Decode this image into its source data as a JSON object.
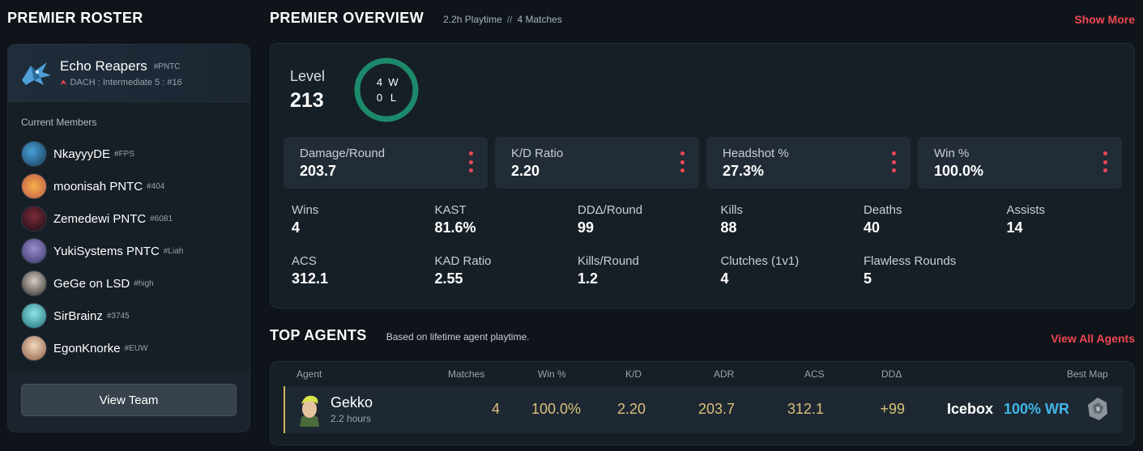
{
  "roster": {
    "title": "PREMIER ROSTER",
    "team_name": "Echo Reapers",
    "team_tag": "#PNTC",
    "team_division": "DACH : Intermediate 5 : #16",
    "members_label": "Current Members",
    "members": [
      {
        "name": "NkayyyDE",
        "tag": "#FPS",
        "color": "#2a6f9a"
      },
      {
        "name": "moonisah PNTC",
        "tag": "#404",
        "color": "#e07a3a"
      },
      {
        "name": "Zemedewi PNTC",
        "tag": "#6081",
        "color": "#5a2330"
      },
      {
        "name": "YukiSystems PNTC",
        "tag": "#Liah",
        "color": "#6b64a8"
      },
      {
        "name": "GeGe on LSD",
        "tag": "#high",
        "color": "#3b3a38"
      },
      {
        "name": "SirBrainz",
        "tag": "#3745",
        "color": "#3fb2b8"
      },
      {
        "name": "EgonKnorke",
        "tag": "#EUW",
        "color": "#c9a07c"
      }
    ],
    "view_team_label": "View Team"
  },
  "overview": {
    "title": "PREMIER OVERVIEW",
    "playtime": "2.2h Playtime",
    "separator": "//",
    "matches": "4 Matches",
    "show_more": "Show More",
    "level_label": "Level",
    "level_value": "213",
    "wins": "4",
    "losses": "0",
    "w_label": "W",
    "l_label": "L",
    "ring_color": "#1c8a6a",
    "top_stats": [
      {
        "label": "Damage/Round",
        "value": "203.7"
      },
      {
        "label": "K/D Ratio",
        "value": "2.20"
      },
      {
        "label": "Headshot %",
        "value": "27.3%"
      },
      {
        "label": "Win %",
        "value": "100.0%"
      }
    ],
    "stats": [
      {
        "label": "Wins",
        "value": "4"
      },
      {
        "label": "KAST",
        "value": "81.6%"
      },
      {
        "label": "DDΔ/Round",
        "value": "99"
      },
      {
        "label": "Kills",
        "value": "88"
      },
      {
        "label": "Deaths",
        "value": "40"
      },
      {
        "label": "Assists",
        "value": "14"
      },
      {
        "label": "ACS",
        "value": "312.1"
      },
      {
        "label": "KAD Ratio",
        "value": "2.55"
      },
      {
        "label": "Kills/Round",
        "value": "1.2"
      },
      {
        "label": "Clutches (1v1)",
        "value": "4"
      },
      {
        "label": "Flawless Rounds",
        "value": "5"
      }
    ]
  },
  "agents": {
    "title": "TOP AGENTS",
    "subtitle": "Based on lifetime agent playtime.",
    "view_all": "View All Agents",
    "columns": {
      "agent": "Agent",
      "matches": "Matches",
      "win": "Win %",
      "kd": "K/D",
      "adr": "ADR",
      "acs": "ACS",
      "dd": "DDΔ",
      "best_map": "Best Map"
    },
    "rows": [
      {
        "name": "Gekko",
        "hours": "2.2 hours",
        "matches": "4",
        "win": "100.0%",
        "kd": "2.20",
        "adr": "203.7",
        "acs": "312.1",
        "dd": "+99",
        "map": "Icebox",
        "map_wr": "100% WR"
      }
    ]
  },
  "colors": {
    "accent_red": "#ef4753",
    "value_gold": "#d9c07a",
    "wr_blue": "#40b6e6"
  }
}
